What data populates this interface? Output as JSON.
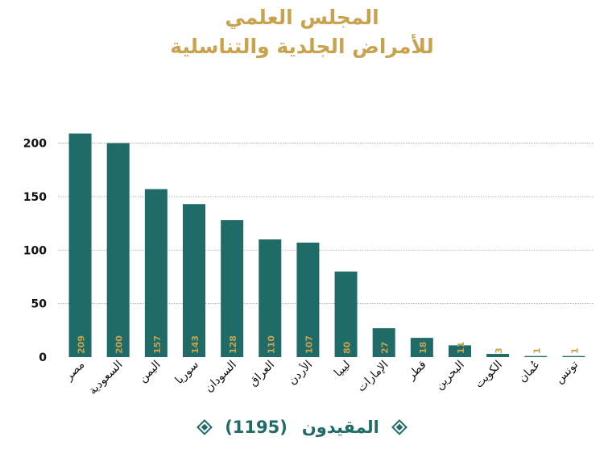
{
  "title": "المجلس العلمي",
  "subtitle": "للأمراض الجلدية والتناسلية",
  "legend": {
    "label": "المقيدون",
    "total": "(1195)"
  },
  "colors": {
    "bar": "#1f6b68",
    "value_label": "#c8a24d",
    "title": "#c8a24d",
    "grid": "#9e9e9e",
    "axis_text": "#111111"
  },
  "chart_data": {
    "type": "bar",
    "categories": [
      "مصر",
      "السعودية",
      "اليمن",
      "سوريا",
      "السودان",
      "العراق",
      "الأردن",
      "ليبيا",
      "الإمارات",
      "قطر",
      "البحرين",
      "الكويت",
      "عُمان",
      "تونس"
    ],
    "series": [
      {
        "values": [
          209,
          200,
          157,
          143,
          128,
          110,
          107,
          80,
          27,
          18,
          11,
          3,
          1,
          1
        ]
      }
    ],
    "yticks": [
      0,
      50,
      100,
      150,
      200
    ],
    "ylim": [
      0,
      220
    ],
    "grid": true,
    "legend_position": "bottom",
    "xlabel": "",
    "ylabel": ""
  }
}
